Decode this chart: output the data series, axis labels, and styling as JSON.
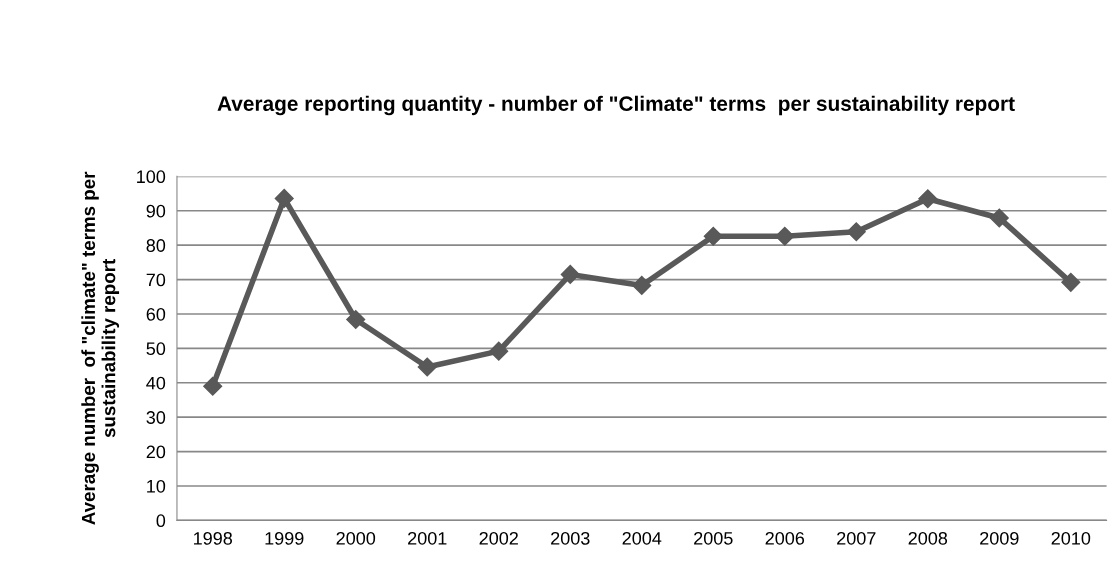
{
  "chart_data": {
    "type": "line",
    "title": "Average reporting quantity - number of \"Climate\" terms  per sustainability report",
    "ylabel": "Average number  of \"climate\" terms per sustainability report",
    "categories": [
      "1998",
      "1999",
      "2000",
      "2001",
      "2002",
      "2003",
      "2004",
      "2005",
      "2006",
      "2007",
      "2008",
      "2009",
      "2010"
    ],
    "series": [
      {
        "color": "#595959",
        "values": [
          39.0,
          93.6,
          58.4,
          44.6,
          49.2,
          71.5,
          68.3,
          82.6,
          82.6,
          83.9,
          93.5,
          87.9,
          69.2
        ]
      }
    ],
    "ylim": [
      0,
      100
    ],
    "yticks": [
      0,
      10,
      20,
      30,
      40,
      50,
      60,
      70,
      80,
      90,
      100
    ],
    "grid": "y",
    "marker": "diamond",
    "line_style": "solid"
  }
}
